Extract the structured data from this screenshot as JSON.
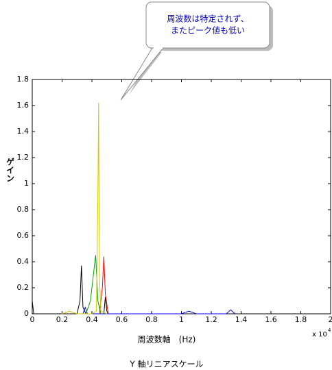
{
  "chart_data": {
    "type": "line",
    "callout": [
      "周波数は特定されず、",
      "またピーク値も低い"
    ],
    "ylabel": "ゲイン",
    "xlabel": "周波数軸　(Hz)",
    "x_multiplier": "x 10",
    "x_exponent": "4",
    "caption": "Y 軸リニアスケール",
    "xlim": [
      0,
      2
    ],
    "xticks": [
      0,
      0.2,
      0.4,
      0.6,
      0.8,
      1,
      1.2,
      1.4,
      1.6,
      1.8,
      2
    ],
    "ylim": [
      0,
      1.8
    ],
    "yticks": [
      0,
      0.2,
      0.4,
      0.6,
      0.8,
      1,
      1.2,
      1.4,
      1.6,
      1.8
    ],
    "series": [
      {
        "color": "#000000",
        "x": [
          0,
          0.005,
          0.01,
          0.3,
          0.32,
          0.33,
          0.34,
          0.36,
          0.48,
          0.49,
          0.5,
          0.51
        ],
        "values": [
          0.1,
          0.05,
          0,
          0,
          0.1,
          0.37,
          0.05,
          0,
          0,
          0.13,
          0.02,
          0
        ]
      },
      {
        "color": "#0000ff",
        "x": [
          0.34,
          0.355,
          0.37,
          1.0,
          1.05,
          1.1,
          1.3,
          1.33,
          1.36
        ],
        "values": [
          0,
          0.05,
          0,
          0,
          0.02,
          0,
          0,
          0.03,
          0
        ]
      },
      {
        "color": "#00a000",
        "x": [
          0.36,
          0.39,
          0.41,
          0.425,
          0.44,
          0.46
        ],
        "values": [
          0,
          0.1,
          0.3,
          0.45,
          0.1,
          0
        ]
      },
      {
        "color": "#ff0000",
        "x": [
          0.45,
          0.47,
          0.48,
          0.49,
          0.51
        ],
        "values": [
          0,
          0.2,
          0.44,
          0.15,
          0
        ]
      },
      {
        "color": "#d0c800",
        "x": [
          0.2,
          0.25,
          0.3,
          0.4,
          0.43,
          0.44,
          0.445,
          0.45,
          0.46,
          0.5
        ],
        "values": [
          0,
          0.02,
          0,
          0,
          0.02,
          0.9,
          1.62,
          0.3,
          0.02,
          0
        ]
      }
    ]
  }
}
